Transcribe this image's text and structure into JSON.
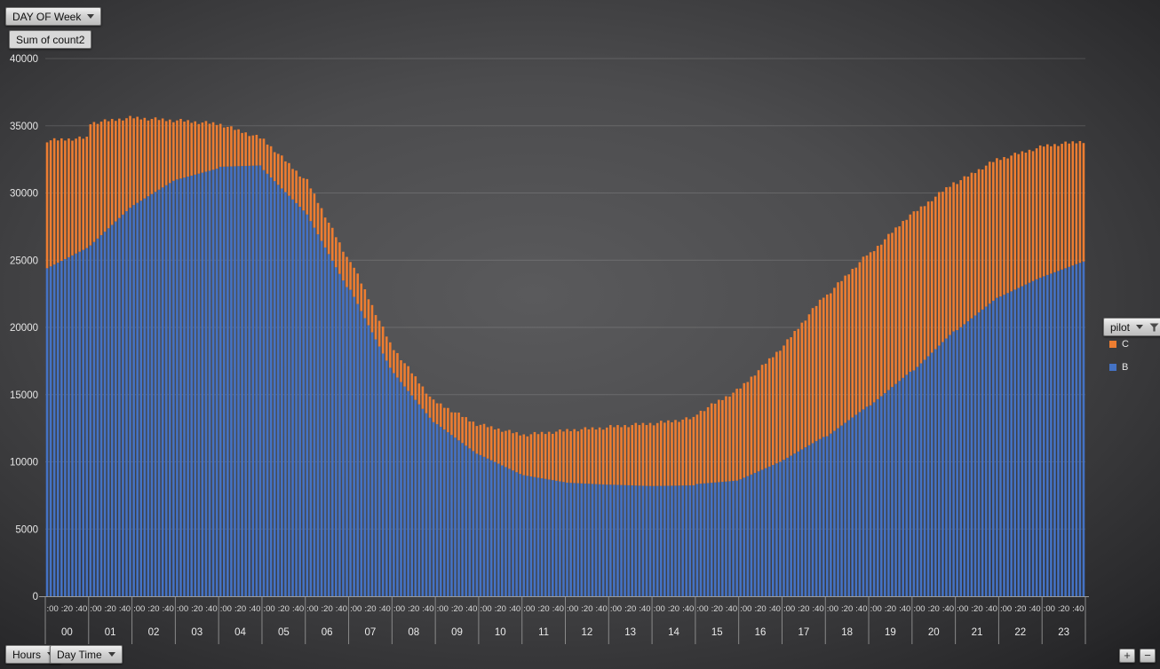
{
  "filters": {
    "report_filter": {
      "label": "DAY OF Week"
    },
    "values_label": "Sum of count2",
    "axis_fields": [
      {
        "label": "Hours"
      },
      {
        "label": "Day Time"
      }
    ]
  },
  "legend": {
    "title": "pilot",
    "filtered": true,
    "items": [
      {
        "name": "C",
        "color": "#ED7D31"
      },
      {
        "name": "B",
        "color": "#4472C4"
      }
    ]
  },
  "controls": {
    "zoom_in": "+",
    "zoom_out": "−"
  },
  "chart_data": {
    "type": "bar",
    "stacked": true,
    "orientation": "vertical",
    "title": "",
    "xlabel": "",
    "ylabel": "",
    "ylim": [
      0,
      40000
    ],
    "yticks": [
      0,
      5000,
      10000,
      15000,
      20000,
      25000,
      30000,
      35000,
      40000
    ],
    "grid": true,
    "legend_position": "right",
    "x_minor_labels": [
      ":00",
      ":20",
      ":40"
    ],
    "bars_per_hour": 12,
    "sampling_minutes": 5,
    "series_order": [
      "B",
      "C"
    ],
    "series_colors": {
      "B": "#4472C4",
      "C": "#ED7D31"
    },
    "values_format": "stacked counts [start_of_hour, end_of_hour]; 5-min bars linearly interpolated within each hour",
    "hours": [
      {
        "hour": "00",
        "B": [
          24400,
          25900
        ],
        "C": [
          9500,
          8200
        ]
      },
      {
        "hour": "01",
        "B": [
          26100,
          28900
        ],
        "C": [
          9100,
          6700
        ]
      },
      {
        "hour": "02",
        "B": [
          29100,
          30900
        ],
        "C": [
          6500,
          4500
        ]
      },
      {
        "hour": "03",
        "B": [
          31000,
          31800
        ],
        "C": [
          4400,
          3350
        ]
      },
      {
        "hour": "04",
        "B": [
          31950,
          32050
        ],
        "C": [
          3150,
          2050
        ]
      },
      {
        "hour": "05",
        "B": [
          31700,
          28700
        ],
        "C": [
          2250,
          2400
        ]
      },
      {
        "hour": "06",
        "B": [
          28400,
          23000
        ],
        "C": [
          2500,
          2200
        ]
      },
      {
        "hour": "07",
        "B": [
          22800,
          17000
        ],
        "C": [
          2200,
          1800
        ]
      },
      {
        "hour": "08",
        "B": [
          16600,
          12950
        ],
        "C": [
          1800,
          1550
        ]
      },
      {
        "hour": "09",
        "B": [
          12800,
          10600
        ],
        "C": [
          1600,
          2200
        ]
      },
      {
        "hour": "10",
        "B": [
          10500,
          9100
        ],
        "C": [
          2250,
          2950
        ]
      },
      {
        "hour": "11",
        "B": [
          9000,
          8500
        ],
        "C": [
          3000,
          3800
        ]
      },
      {
        "hour": "12",
        "B": [
          8450,
          8300
        ],
        "C": [
          3900,
          4250
        ]
      },
      {
        "hour": "13",
        "B": [
          8300,
          8200
        ],
        "C": [
          4300,
          4650
        ]
      },
      {
        "hour": "14",
        "B": [
          8200,
          8250
        ],
        "C": [
          4650,
          5000
        ]
      },
      {
        "hour": "15",
        "B": [
          8350,
          8600
        ],
        "C": [
          5250,
          6700
        ]
      },
      {
        "hour": "16",
        "B": [
          8700,
          10000
        ],
        "C": [
          6800,
          8400
        ]
      },
      {
        "hour": "17",
        "B": [
          10150,
          11850
        ],
        "C": [
          8500,
          10450
        ]
      },
      {
        "hour": "18",
        "B": [
          11900,
          14100
        ],
        "C": [
          10500,
          11300
        ]
      },
      {
        "hour": "19",
        "B": [
          14200,
          16700
        ],
        "C": [
          11300,
          11700
        ]
      },
      {
        "hour": "20",
        "B": [
          16800,
          19700
        ],
        "C": [
          11700,
          11050
        ]
      },
      {
        "hour": "21",
        "B": [
          19800,
          22200
        ],
        "C": [
          11000,
          10300
        ]
      },
      {
        "hour": "22",
        "B": [
          22300,
          23700
        ],
        "C": [
          10250,
          9700
        ]
      },
      {
        "hour": "23",
        "B": [
          23800,
          24900
        ],
        "C": [
          9700,
          8950
        ]
      }
    ]
  }
}
